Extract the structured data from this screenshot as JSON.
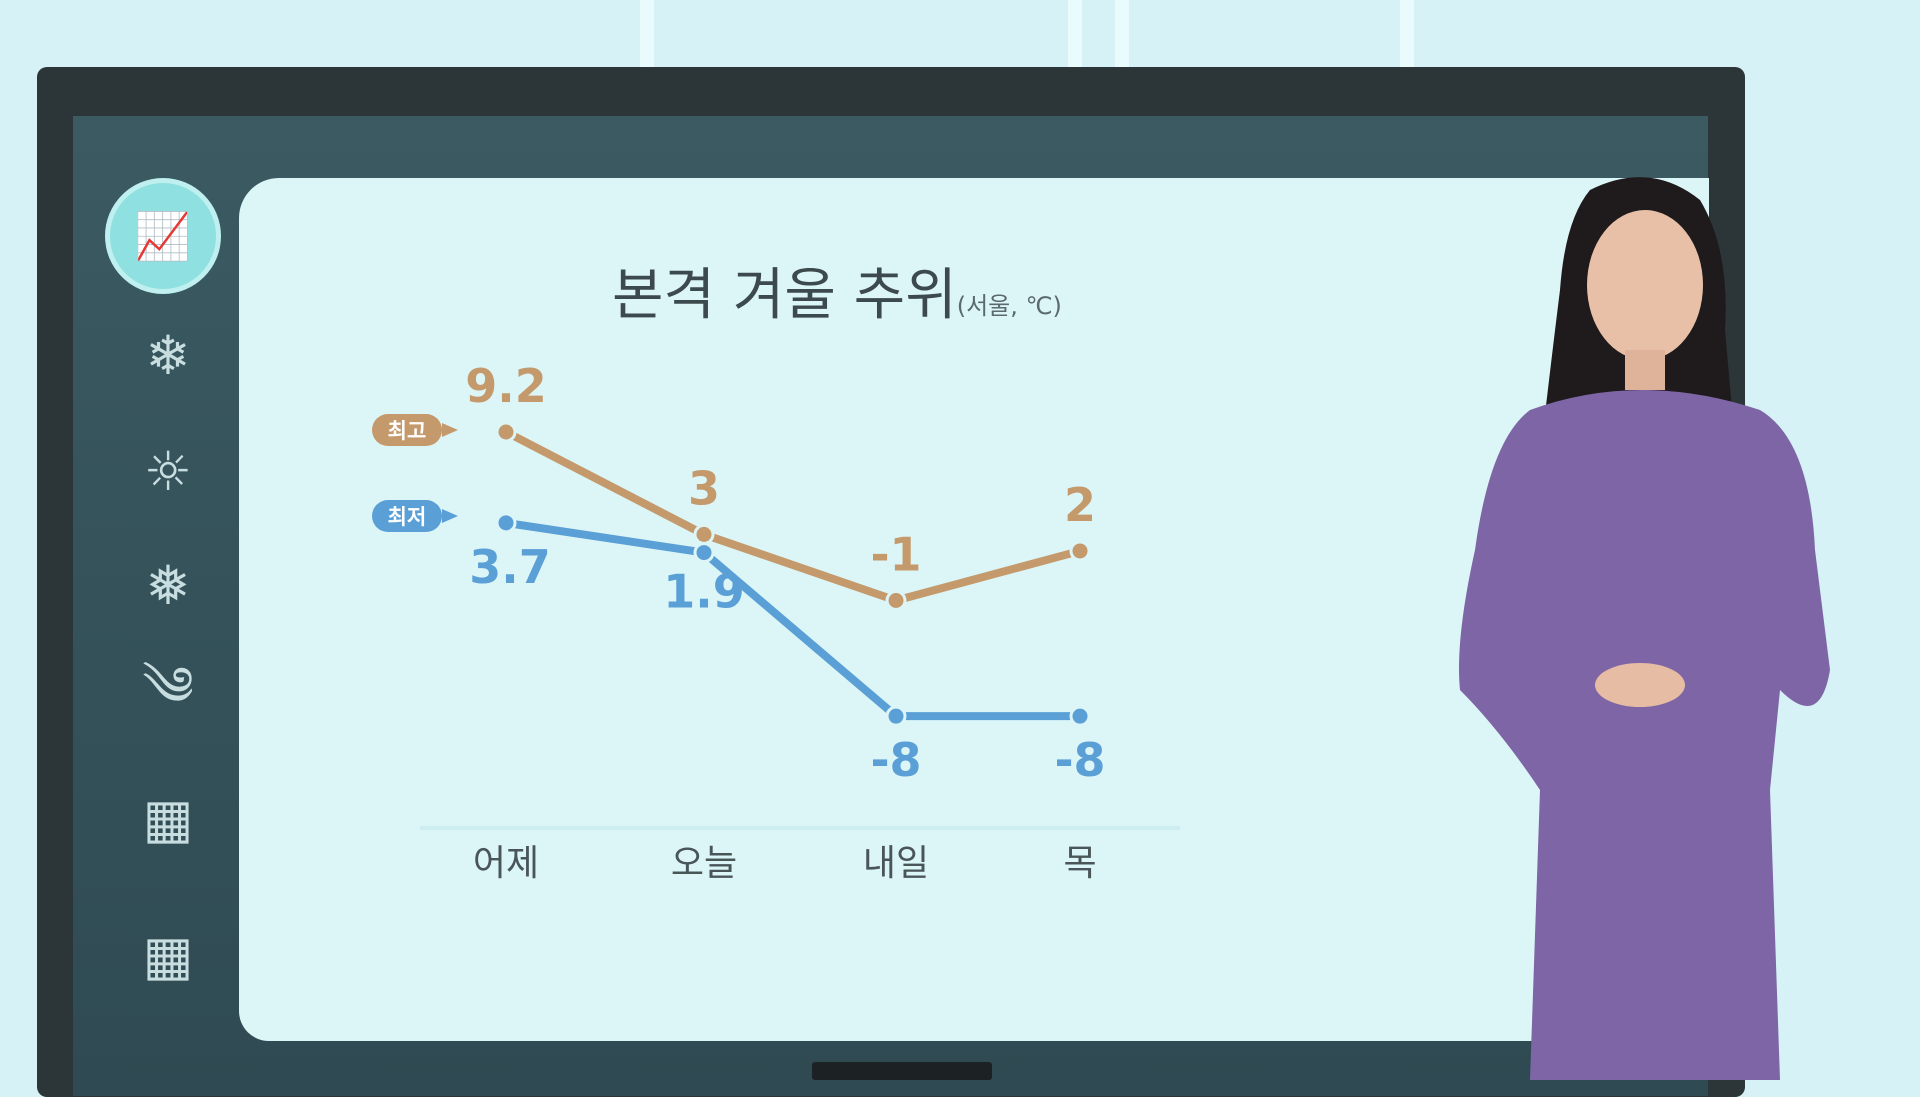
{
  "chart_data": {
    "type": "line",
    "title": "본격 겨울 추위",
    "subtitle": "(서울, ℃)",
    "categories": [
      "어제",
      "오늘",
      "내일",
      "목"
    ],
    "series": [
      {
        "name": "최고",
        "values": [
          9.2,
          3,
          -1,
          2
        ],
        "labels": [
          "9.2",
          "3",
          "-1",
          "2"
        ],
        "color": "#c49a6c"
      },
      {
        "name": "최저",
        "values": [
          3.7,
          1.9,
          -8,
          -8
        ],
        "labels": [
          "3.7",
          "1.9",
          "-8",
          "-8"
        ],
        "color": "#5a9fd6"
      }
    ],
    "grid": false
  },
  "sidebar": {
    "icons": [
      "line-chart-icon",
      "snow-thermometer-icon",
      "sun-thermometer-icon",
      "snowflake-icon",
      "wind-leaf-icon",
      "calendar-icon",
      "calendar-icon"
    ]
  }
}
